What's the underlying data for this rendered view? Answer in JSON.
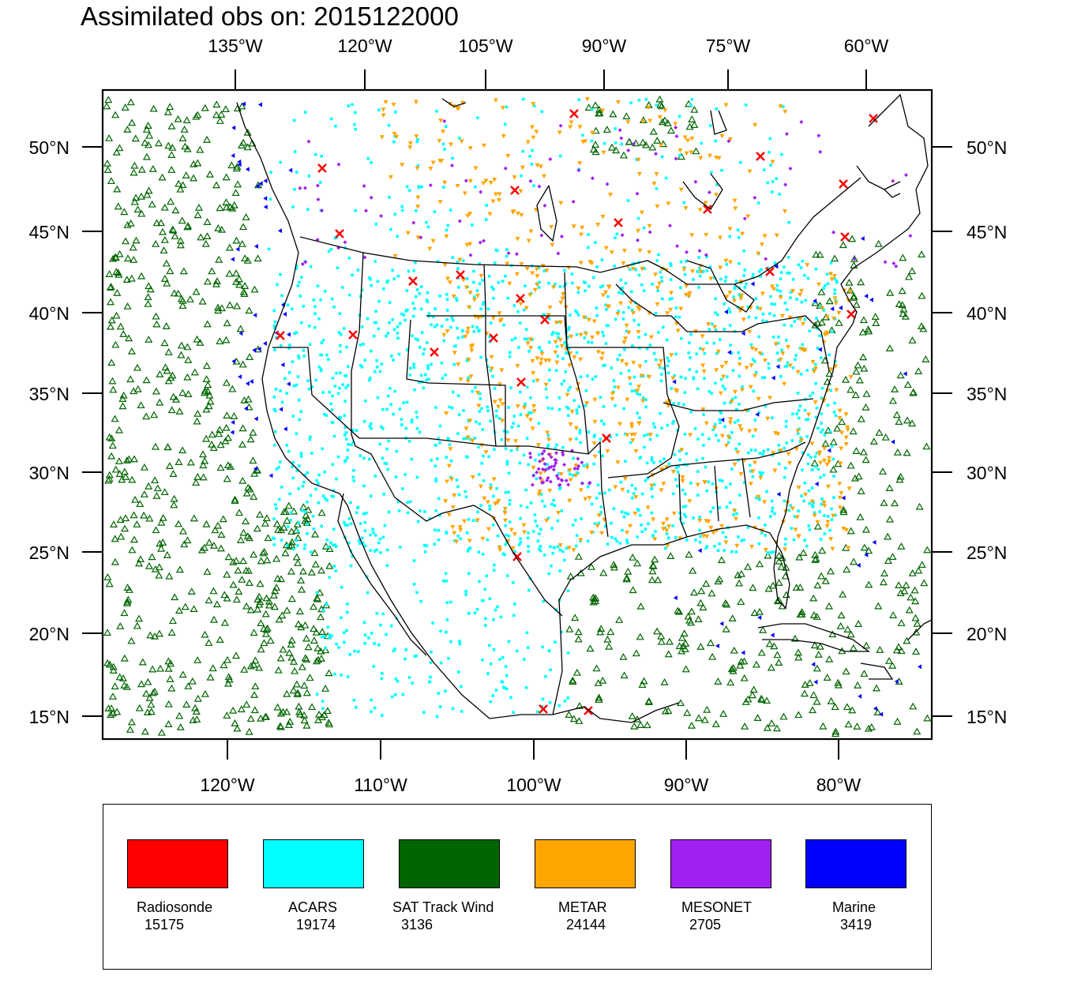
{
  "title": "Assimilated obs on: 2015122000",
  "top_lon_labels": [
    "135°W",
    "120°W",
    "105°W",
    "90°W",
    "75°W",
    "60°W"
  ],
  "bottom_lon_labels": [
    "120°W",
    "110°W",
    "100°W",
    "90°W",
    "80°W"
  ],
  "lat_labels": [
    "50°N",
    "45°N",
    "40°N",
    "35°N",
    "30°N",
    "25°N",
    "20°N",
    "15°N"
  ],
  "legend": [
    {
      "name": "Radiosonde",
      "count": "15175",
      "color": "#ff0000",
      "marker": "x-icon"
    },
    {
      "name": "ACARS",
      "count": "19174",
      "color": "#00ffff",
      "marker": "square-icon"
    },
    {
      "name": "SAT Track Wind",
      "count": "3136",
      "color": "#006400",
      "marker": "triangle-up-icon"
    },
    {
      "name": "METAR",
      "count": "24144",
      "color": "#ffa500",
      "marker": "triangle-down-icon"
    },
    {
      "name": "MESONET",
      "count": "2705",
      "color": "#a020f0",
      "marker": "diamond-icon"
    },
    {
      "name": "Marine",
      "count": "3419",
      "color": "#0000ff",
      "marker": "triangle-left-icon"
    }
  ]
}
